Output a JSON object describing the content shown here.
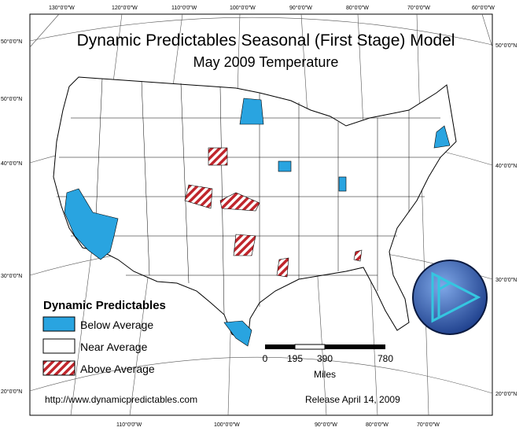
{
  "title": "Dynamic Predictables Seasonal (First Stage) Model",
  "subtitle": "May 2009 Temperature",
  "legend": {
    "title": "Dynamic Predictables",
    "items": [
      "Below Average",
      "Near Average",
      "Above Average"
    ]
  },
  "scale": {
    "ticks": [
      "0",
      "195",
      "390",
      "780"
    ],
    "unit": "Miles"
  },
  "url": "http://www.dynamicpredictables.com",
  "release": "Release April 14, 2009",
  "graticule": {
    "top": [
      "130°0'0\"W",
      "120°0'0\"W",
      "110°0'0\"W",
      "100°0'0\"W",
      "90°0'0\"W",
      "80°0'0\"W",
      "70°0'0\"W",
      "60°0'0\"W"
    ],
    "left": [
      "50°0'0\"N",
      "50°0'0\"N",
      "40°0'0\"N",
      "30°0'0\"N",
      "20°0'0\"N"
    ],
    "right": [
      "50°0'0\"N",
      "40°0'0\"N",
      "30°0'0\"N",
      "20°0'0\"N"
    ],
    "bottom": [
      "110°0'0\"W",
      "100°0'0\"W",
      "90°0'0\"W",
      "80°0'0\"W",
      "70°0'0\"W"
    ]
  }
}
